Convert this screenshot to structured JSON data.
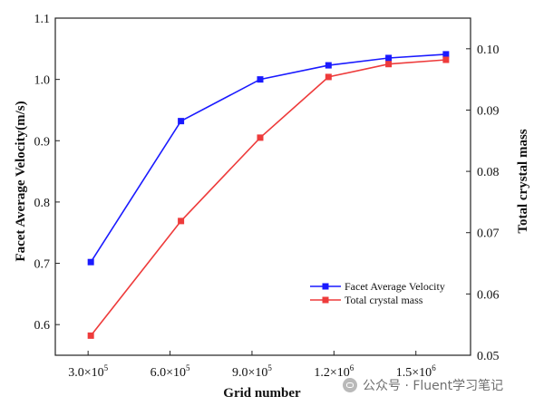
{
  "chart_data": {
    "type": "line",
    "xlabel": "Grid number",
    "ylabel_left": "Facet Average Velocity(m/s)",
    "ylabel_right": "Total crystal mass",
    "x_ticks": [
      {
        "value": 300000,
        "mantissa": "3.0",
        "exp": "5"
      },
      {
        "value": 600000,
        "mantissa": "6.0",
        "exp": "5"
      },
      {
        "value": 900000,
        "mantissa": "9.0",
        "exp": "5"
      },
      {
        "value": 1200000,
        "mantissa": "1.2",
        "exp": "6"
      },
      {
        "value": 1500000,
        "mantissa": "1.5",
        "exp": "6"
      }
    ],
    "xlim": [
      180000,
      1700000
    ],
    "ylim_left": [
      0.55,
      1.1
    ],
    "ylim_right": [
      0.05,
      0.105
    ],
    "y_ticks_left": [
      "0.6",
      "0.7",
      "0.8",
      "0.9",
      "1.0",
      "1.1"
    ],
    "y_ticks_right": [
      "0.05",
      "0.06",
      "0.07",
      "0.08",
      "0.09",
      "0.10"
    ],
    "x": [
      310000,
      640000,
      930000,
      1180000,
      1400000,
      1610000
    ],
    "series": [
      {
        "name": "Facet Average Velocity",
        "axis": "left",
        "color": "#1a1aff",
        "values": [
          0.702,
          0.932,
          1.0,
          1.023,
          1.035,
          1.041
        ]
      },
      {
        "name": "Total crystal mass",
        "axis": "right",
        "color": "#ee3b3b",
        "values": [
          0.0532,
          0.0719,
          0.0855,
          0.0954,
          0.0975,
          0.0982
        ]
      }
    ],
    "legend_position": "bottom-right",
    "grid": false
  },
  "watermark": {
    "text": "公众号 · Fluent学习笔记",
    "icon": "wechat-icon"
  }
}
